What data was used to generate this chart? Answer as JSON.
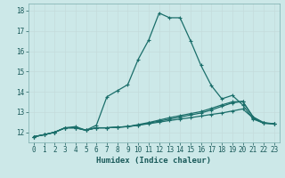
{
  "xlabel": "Humidex (Indice chaleur)",
  "bg_color": "#cce8e8",
  "grid_color_major": "#c0d8d8",
  "grid_color_minor": "#d8ecec",
  "line_color": "#1a6e6a",
  "xlim": [
    -0.5,
    23.5
  ],
  "ylim": [
    11.5,
    18.35
  ],
  "yticks": [
    12,
    13,
    14,
    15,
    16,
    17,
    18
  ],
  "xticks": [
    0,
    1,
    2,
    3,
    4,
    5,
    6,
    7,
    8,
    9,
    10,
    11,
    12,
    13,
    14,
    15,
    16,
    17,
    18,
    19,
    20,
    21,
    22,
    23
  ],
  "line1_x": [
    0,
    1,
    2,
    3,
    4,
    5,
    6,
    7,
    8,
    9,
    10,
    11,
    12,
    13,
    14,
    15,
    16,
    17,
    18,
    19,
    20,
    21,
    22,
    23
  ],
  "line1_y": [
    11.78,
    11.88,
    12.0,
    12.22,
    12.28,
    12.1,
    12.35,
    13.75,
    14.05,
    14.35,
    15.6,
    16.55,
    17.88,
    17.65,
    17.65,
    16.52,
    15.3,
    14.3,
    13.65,
    13.82,
    13.35,
    12.65,
    12.45,
    12.42
  ],
  "line2_x": [
    0,
    1,
    2,
    3,
    4,
    5,
    6,
    7,
    8,
    9,
    10,
    11,
    12,
    13,
    14,
    15,
    16,
    17,
    18,
    19,
    20,
    21,
    22,
    23
  ],
  "line2_y": [
    11.78,
    11.88,
    12.0,
    12.22,
    12.22,
    12.1,
    12.22,
    12.22,
    12.25,
    12.28,
    12.35,
    12.42,
    12.5,
    12.58,
    12.65,
    12.72,
    12.8,
    12.88,
    12.95,
    13.05,
    13.15,
    12.7,
    12.45,
    12.42
  ],
  "line3_x": [
    0,
    1,
    2,
    3,
    4,
    5,
    6,
    7,
    8,
    9,
    10,
    11,
    12,
    13,
    14,
    15,
    16,
    17,
    18,
    19,
    20,
    21,
    22,
    23
  ],
  "line3_y": [
    11.78,
    11.88,
    12.0,
    12.22,
    12.22,
    12.1,
    12.22,
    12.22,
    12.25,
    12.28,
    12.35,
    12.45,
    12.55,
    12.65,
    12.75,
    12.85,
    12.95,
    13.1,
    13.28,
    13.45,
    13.52,
    12.75,
    12.45,
    12.42
  ],
  "line4_x": [
    0,
    1,
    2,
    3,
    4,
    5,
    6,
    7,
    8,
    9,
    10,
    11,
    12,
    13,
    14,
    15,
    16,
    17,
    18,
    19,
    20,
    21,
    22,
    23
  ],
  "line4_y": [
    11.78,
    11.88,
    12.0,
    12.22,
    12.22,
    12.1,
    12.22,
    12.22,
    12.25,
    12.28,
    12.38,
    12.48,
    12.6,
    12.72,
    12.82,
    12.92,
    13.02,
    13.18,
    13.35,
    13.5,
    13.52,
    12.75,
    12.48,
    12.42
  ]
}
